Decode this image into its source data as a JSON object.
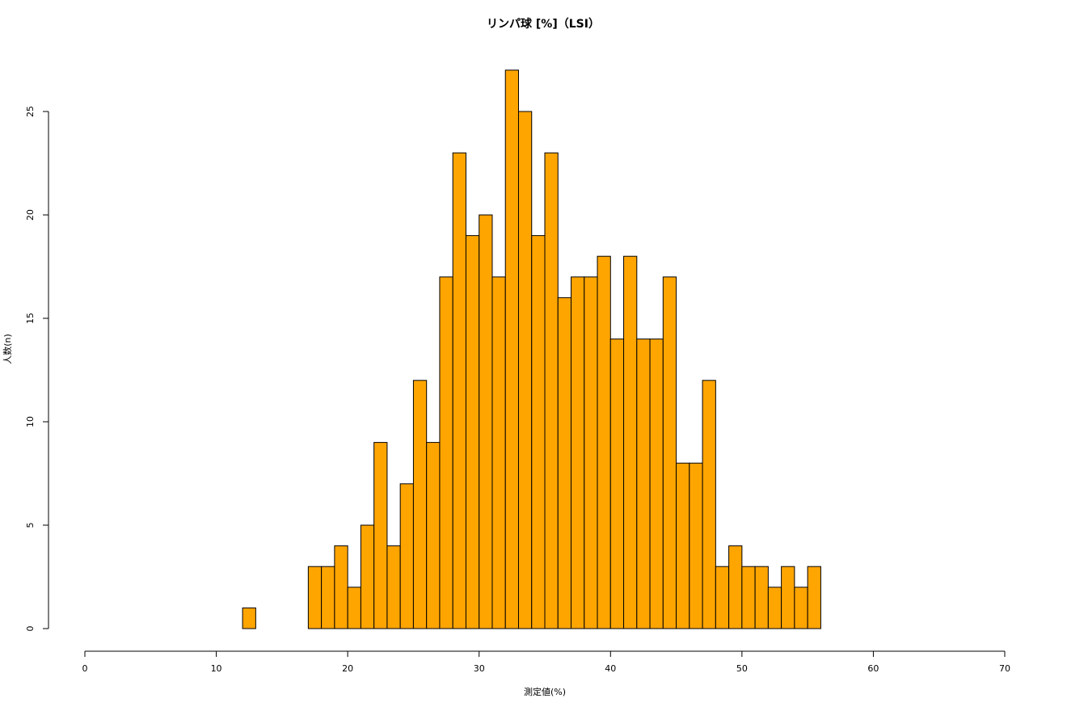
{
  "chart_data": {
    "type": "histogram",
    "title": "リンパ球 [%]（LSI）",
    "x_label": "測定値(%)",
    "y_label": "人数(n)",
    "bins": [
      12,
      13,
      14,
      15,
      16,
      17,
      18,
      19,
      20,
      21,
      22,
      23,
      24,
      25,
      26,
      27,
      28,
      29,
      30,
      31,
      32,
      33,
      34,
      35,
      36,
      37,
      38,
      39,
      40,
      41,
      42,
      43,
      44,
      45,
      46,
      47,
      48,
      49,
      50,
      51,
      52,
      53,
      54,
      55,
      56
    ],
    "values": [
      1,
      0,
      0,
      0,
      0,
      3,
      3,
      4,
      2,
      5,
      9,
      4,
      7,
      12,
      9,
      17,
      23,
      19,
      20,
      17,
      27,
      25,
      19,
      23,
      16,
      17,
      17,
      18,
      14,
      18,
      14,
      14,
      17,
      8,
      8,
      12,
      3,
      4,
      3,
      3,
      2,
      3,
      2,
      3
    ],
    "color": "#ffa500",
    "xlim": [
      0,
      70
    ],
    "xticks": [
      0,
      10,
      20,
      30,
      40,
      50,
      60,
      70
    ],
    "ylim": [
      0,
      25
    ],
    "yticks": [
      0,
      5,
      10,
      15,
      20,
      25
    ]
  }
}
